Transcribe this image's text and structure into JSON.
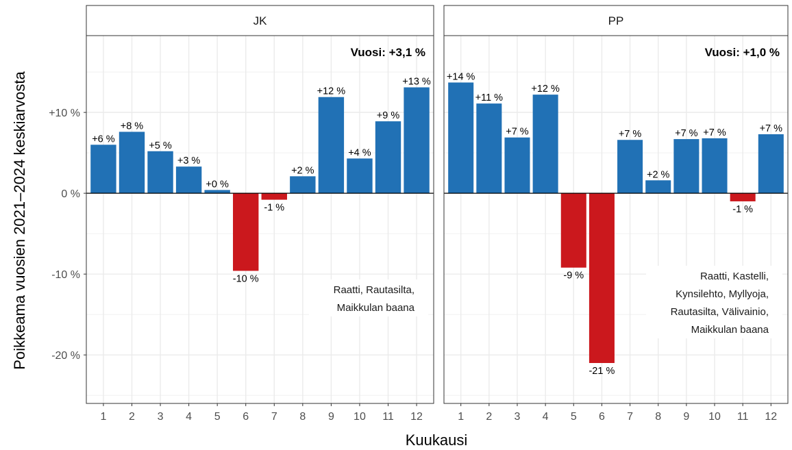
{
  "chart_data": {
    "type": "bar",
    "ylabel": "Poikkeama vuosien 2021–2024 keskiarvosta",
    "xlabel": "Kuukausi",
    "ylim": [
      -26,
      19.5
    ],
    "yticks": [
      -20,
      -10,
      0,
      10
    ],
    "ytick_labels": [
      "-20 %",
      "-10 %",
      "0 %",
      "+10 %"
    ],
    "categories": [
      "1",
      "2",
      "3",
      "4",
      "5",
      "6",
      "7",
      "8",
      "9",
      "10",
      "11",
      "12"
    ],
    "grid": true,
    "colors": {
      "positive": "#2171b5",
      "negative": "#cb181d"
    },
    "panels": [
      {
        "title": "JK",
        "year_label": "Vuosi: +3,1 %",
        "values": [
          6.0,
          7.6,
          5.2,
          3.3,
          0.4,
          -9.6,
          -0.8,
          2.1,
          11.9,
          4.3,
          8.9,
          13.1
        ],
        "labels": [
          "+6 %",
          "+8 %",
          "+5 %",
          "+3 %",
          "+0 %",
          "-10 %",
          "-1 %",
          "+2 %",
          "+12 %",
          "+4 %",
          "+9 %",
          "+13 %"
        ],
        "stations": [
          "Raatti, Rautasilta,",
          "Maikkulan baana"
        ]
      },
      {
        "title": "PP",
        "year_label": "Vuosi: +1,0 %",
        "values": [
          13.7,
          11.1,
          6.9,
          12.2,
          -9.2,
          -21.0,
          6.6,
          1.6,
          6.7,
          6.8,
          -1.0,
          7.3
        ],
        "labels": [
          "+14 %",
          "+11 %",
          "+7 %",
          "+12 %",
          "-9 %",
          "-21 %",
          "+7 %",
          "+2 %",
          "+7 %",
          "+7 %",
          "-1 %",
          "+7 %"
        ],
        "stations": [
          "Raatti, Kastelli,",
          "Kynsilehto, Myllyoja,",
          "Rautasilta, Välivainio,",
          "Maikkulan baana"
        ]
      }
    ]
  }
}
